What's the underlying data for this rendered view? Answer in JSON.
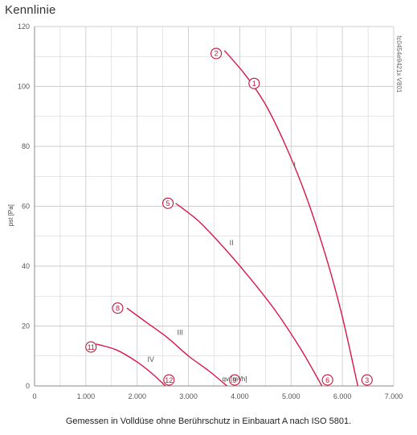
{
  "heading": "Kennlinie",
  "caption": "Gemessen in Volldüse ohne Berührschutz in Einbauart A nach ISO 5801.",
  "side_code": "fc0454e9421x V801",
  "colors": {
    "curve": "#d8164a",
    "grid": "#cccccc",
    "axis": "#888888",
    "marker": "#c0143c"
  },
  "chart_data": {
    "type": "line",
    "title": "",
    "xlabel": "qv [m³/h]",
    "ylabel": "pst [Pa]",
    "xlim": [
      0,
      7000
    ],
    "ylim": [
      0,
      120
    ],
    "x_ticks": [
      0,
      1000,
      2000,
      3000,
      4000,
      5000,
      6000,
      7000
    ],
    "x_tick_labels": [
      "0",
      "1.000",
      "2.000",
      "3.000",
      "4.000",
      "5.000",
      "6.000",
      "7.000"
    ],
    "y_ticks": [
      0,
      20,
      40,
      60,
      80,
      100,
      120
    ],
    "y_tick_labels": [
      "0",
      "20",
      "40",
      "60",
      "80",
      "100",
      "120"
    ],
    "grid": true,
    "series": [
      {
        "name": "I",
        "x": [
          3700,
          4100,
          4500,
          4900,
          5300,
          5700,
          6000,
          6300
        ],
        "y": [
          112,
          104,
          94,
          80,
          63,
          42,
          23,
          0
        ],
        "label_at": [
          5050,
          73
        ]
      },
      {
        "name": "II",
        "x": [
          2750,
          3200,
          3700,
          4200,
          4700,
          5200,
          5600
        ],
        "y": [
          61,
          55,
          46,
          36,
          25,
          12,
          0
        ],
        "label_at": [
          3800,
          47
        ]
      },
      {
        "name": "III",
        "x": [
          1800,
          2200,
          2600,
          3000,
          3400,
          3750
        ],
        "y": [
          26,
          21,
          16,
          10,
          5,
          0
        ],
        "label_at": [
          2780,
          17
        ]
      },
      {
        "name": "IV",
        "x": [
          1200,
          1600,
          2000,
          2300,
          2550
        ],
        "y": [
          14,
          12,
          8,
          4,
          0
        ],
        "label_at": [
          2200,
          8
        ]
      }
    ],
    "markers": [
      {
        "label": "1",
        "x": 4280,
        "y": 101
      },
      {
        "label": "2",
        "x": 3540,
        "y": 111
      },
      {
        "label": "3",
        "x": 6480,
        "y": 2
      },
      {
        "label": "5",
        "x": 2600,
        "y": 61
      },
      {
        "label": "6",
        "x": 5710,
        "y": 2
      },
      {
        "label": "8",
        "x": 1620,
        "y": 26
      },
      {
        "label": "9",
        "x": 3900,
        "y": 2
      },
      {
        "label": "11",
        "x": 1100,
        "y": 13
      },
      {
        "label": "12",
        "x": 2620,
        "y": 2
      }
    ]
  }
}
